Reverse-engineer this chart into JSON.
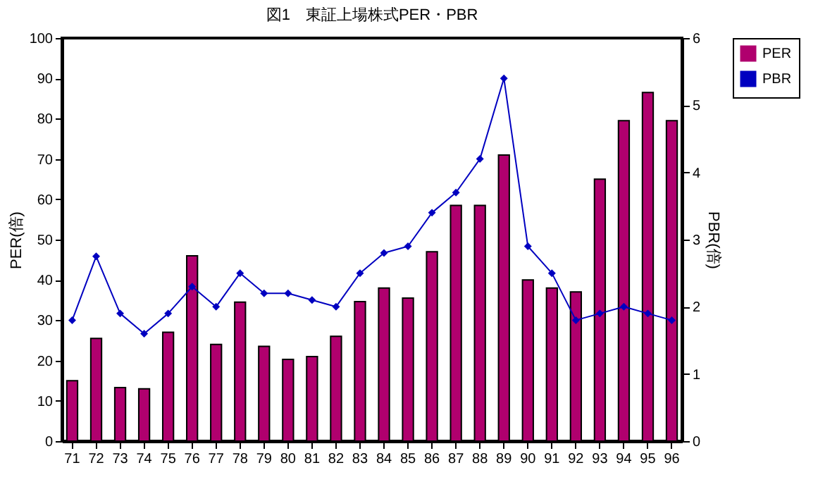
{
  "chart_data": {
    "type": "bar",
    "title": "図1　東証上場株式PER・PBR",
    "ylabel": "PER(倍)",
    "y2label": "PBR(倍)",
    "categories": [
      "71",
      "72",
      "73",
      "74",
      "75",
      "76",
      "77",
      "78",
      "79",
      "80",
      "81",
      "82",
      "83",
      "84",
      "85",
      "86",
      "87",
      "88",
      "89",
      "90",
      "91",
      "92",
      "93",
      "94",
      "95",
      "96"
    ],
    "series": [
      {
        "name": "PER",
        "color": "#b0006e",
        "values": [
          15,
          25.5,
          13.3,
          13,
          27,
          46,
          24,
          34.5,
          23.5,
          20.3,
          21,
          26,
          34.6,
          38,
          35.5,
          47,
          58.5,
          58.5,
          71,
          40,
          38,
          37,
          65,
          79.5,
          86.5,
          79.5
        ]
      },
      {
        "name": "PBR",
        "type": "line",
        "axis": "y2",
        "color": "#0000c0",
        "marker": "diamond",
        "values": [
          1.8,
          2.75,
          1.9,
          1.6,
          1.9,
          2.3,
          2.0,
          2.5,
          2.2,
          2.2,
          2.1,
          2.0,
          2.5,
          2.8,
          2.9,
          3.4,
          3.7,
          4.2,
          5.4,
          2.9,
          2.5,
          1.8,
          1.9,
          2.0,
          1.9,
          1.8
        ]
      }
    ],
    "ylim": [
      0,
      100
    ],
    "yticks": [
      0,
      10,
      20,
      30,
      40,
      50,
      60,
      70,
      80,
      90,
      100
    ],
    "y2lim": [
      0,
      6
    ],
    "y2ticks": [
      0,
      1,
      2,
      3,
      4,
      5,
      6
    ],
    "grid": false,
    "legend": "right"
  }
}
